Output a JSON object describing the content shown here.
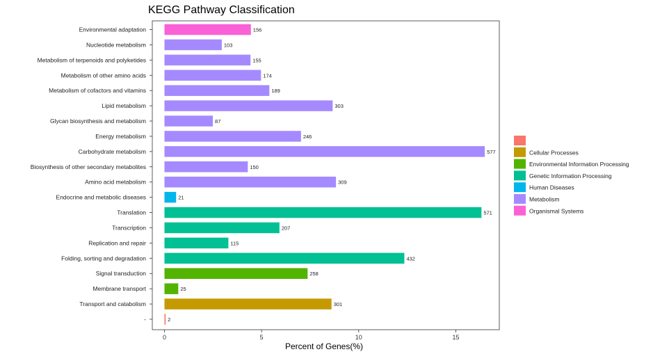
{
  "chart_data": {
    "type": "bar",
    "orientation": "horizontal",
    "title": "KEGG Pathway Classification",
    "xlabel": "Percent of Genes(%)",
    "ylabel": "",
    "xlim": [
      0,
      17
    ],
    "xticks": [
      0,
      5,
      10,
      15
    ],
    "grid": false,
    "legend_position": "right",
    "legend": [
      {
        "name": "",
        "color": "#F8766D"
      },
      {
        "name": "Cellular Processes",
        "color": "#C49A00"
      },
      {
        "name": "Environmental Information Processing",
        "color": "#53B400"
      },
      {
        "name": "Genetic Information Processing",
        "color": "#00C094"
      },
      {
        "name": "Human Diseases",
        "color": "#00B6EB"
      },
      {
        "name": "Metabolism",
        "color": "#A58AFF"
      },
      {
        "name": "Organismal Systems",
        "color": "#FB61D7"
      }
    ],
    "bars": [
      {
        "category": "Environmental adaptation",
        "group": "Organismal Systems",
        "percent": 4.45,
        "count": "156"
      },
      {
        "category": "Nucleotide metabolism",
        "group": "Metabolism",
        "percent": 2.95,
        "count": "103"
      },
      {
        "category": "Metabolism of terpenoids and polyketides",
        "group": "Metabolism",
        "percent": 4.43,
        "count": "155"
      },
      {
        "category": "Metabolism of other amino acids",
        "group": "Metabolism",
        "percent": 4.97,
        "count": "174"
      },
      {
        "category": "Metabolism of cofactors and vitamins",
        "group": "Metabolism",
        "percent": 5.4,
        "count": "189"
      },
      {
        "category": "Lipid metabolism",
        "group": "Metabolism",
        "percent": 8.66,
        "count": "303"
      },
      {
        "category": "Glycan biosynthesis and metabolism",
        "group": "Metabolism",
        "percent": 2.49,
        "count": "87"
      },
      {
        "category": "Energy metabolism",
        "group": "Metabolism",
        "percent": 7.03,
        "count": "246"
      },
      {
        "category": "Carbohydrate metabolism",
        "group": "Metabolism",
        "percent": 16.49,
        "count": "577"
      },
      {
        "category": "Biosynthesis of other secondary metabolites",
        "group": "Metabolism",
        "percent": 4.29,
        "count": "150"
      },
      {
        "category": "Amino acid metabolism",
        "group": "Metabolism",
        "percent": 8.83,
        "count": "309"
      },
      {
        "category": "Endocrine and metabolic diseases",
        "group": "Human Diseases",
        "percent": 0.6,
        "count": "21"
      },
      {
        "category": "Translation",
        "group": "Genetic Information Processing",
        "percent": 16.32,
        "count": "571"
      },
      {
        "category": "Transcription",
        "group": "Genetic Information Processing",
        "percent": 5.92,
        "count": "207"
      },
      {
        "category": "Replication and repair",
        "group": "Genetic Information Processing",
        "percent": 3.29,
        "count": "115"
      },
      {
        "category": "Folding, sorting and degradation",
        "group": "Genetic Information Processing",
        "percent": 12.35,
        "count": "432"
      },
      {
        "category": "Signal transduction",
        "group": "Environmental Information Processing",
        "percent": 7.37,
        "count": "258"
      },
      {
        "category": "Membrane transport",
        "group": "Environmental Information Processing",
        "percent": 0.71,
        "count": "25"
      },
      {
        "category": "Transport and catabolism",
        "group": "Cellular Processes",
        "percent": 8.6,
        "count": "301"
      },
      {
        "category": "-",
        "group": "",
        "percent": 0.06,
        "count": "2"
      }
    ]
  }
}
